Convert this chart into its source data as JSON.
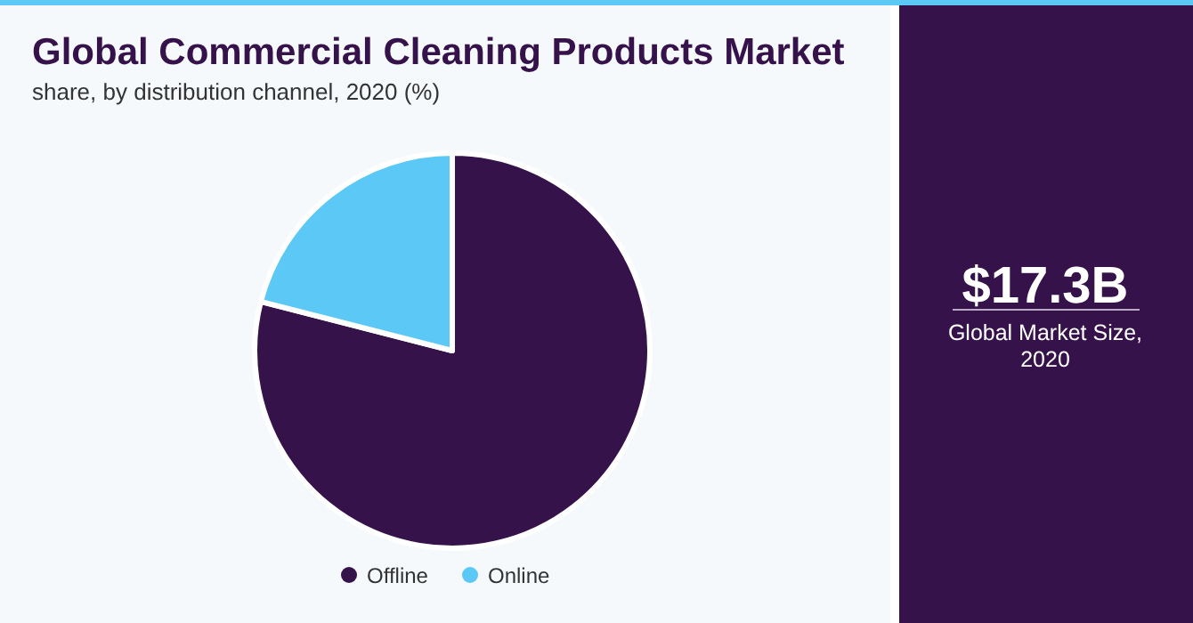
{
  "chart_data": [
    {
      "type": "pie",
      "title": "Global Commercial Cleaning Products Market",
      "subtitle": "share, by distribution channel, 2020 (%)",
      "categories": [
        "Offline",
        "Online"
      ],
      "values": [
        79,
        21
      ],
      "colors": [
        "#36124a",
        "#5bc8f5"
      ],
      "legend": "bottom"
    },
    {
      "type": "other",
      "title": "$17.3B",
      "subtitle": "Global Market Size, 2020"
    }
  ]
}
